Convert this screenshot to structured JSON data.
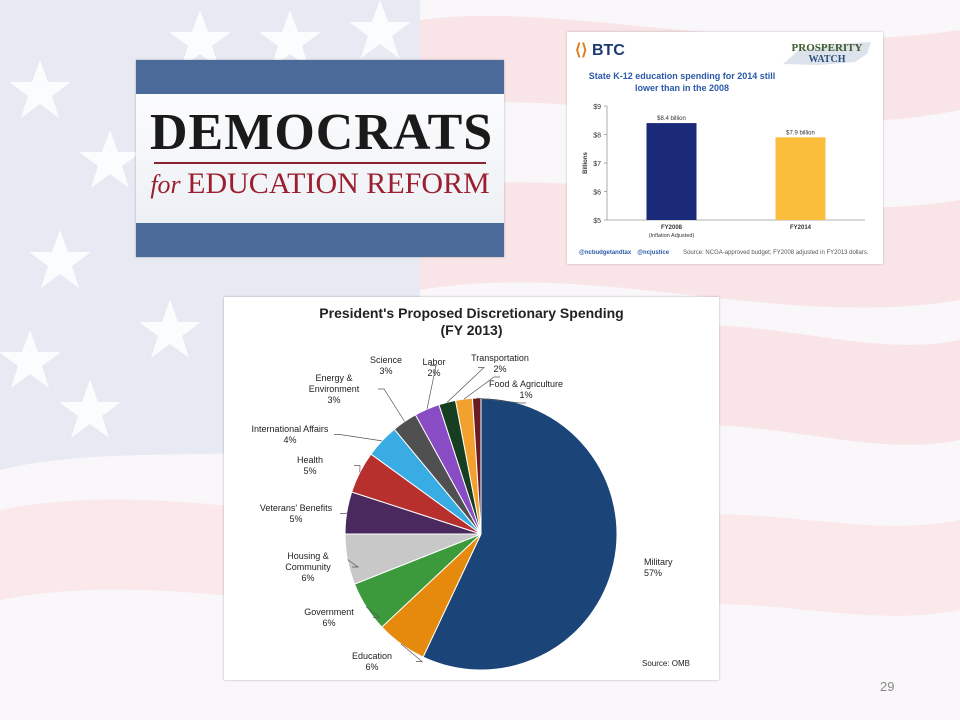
{
  "slide": {
    "number": "29"
  },
  "dfer_logo": {
    "line1": "DEMOCRATS",
    "line2_prefix": "for ",
    "line2_main": "EDUCATION REFORM"
  },
  "btc_logo": {
    "mark": "⟨⟩",
    "text": "BTC"
  },
  "prosperity_logo": {
    "line1": "PROSPERITY",
    "line2": "WATCH"
  },
  "btc_chart": {
    "title": "State K-12 education spending for 2014 still lower than in the 2008",
    "footer_handles": [
      "@ncbudgetandtax",
      "@ncjustice"
    ],
    "footer_source": "Source: NCGA-approved budget; FY2008 adjusted in FY2013 dollars."
  },
  "pie_chart": {
    "title_line1": "President's Proposed Discretionary Spending",
    "title_line2": "(FY 2013)",
    "source": "Source: OMB"
  },
  "chart_data": [
    {
      "type": "bar",
      "title": "State K-12 education spending for 2014 still lower than in the 2008",
      "ylabel": "Billions",
      "ylim": [
        5,
        9
      ],
      "yticks": [
        "$9",
        "$8",
        "$7",
        "$6",
        "$5"
      ],
      "categories": [
        "FY2008",
        "FY2014"
      ],
      "category_sublabels": [
        "(Inflation Adjusted)",
        ""
      ],
      "values": [
        8.4,
        7.9
      ],
      "data_labels": [
        "$8.4 billion",
        "$7.9 billion"
      ],
      "colors": [
        "#1b2a78",
        "#fbbd3c"
      ],
      "grid": false
    },
    {
      "type": "pie",
      "title": "President's Proposed Discretionary Spending (FY 2013)",
      "slices": [
        {
          "name": "Military",
          "value": 57,
          "label": "57%",
          "color": "#1b4478"
        },
        {
          "name": "Education",
          "value": 6,
          "label": "6%",
          "color": "#e58a0c"
        },
        {
          "name": "Government",
          "value": 6,
          "label": "6%",
          "color": "#3c9a3c"
        },
        {
          "name": "Housing & Community",
          "value": 6,
          "label": "6%",
          "color": "#c8c8c8"
        },
        {
          "name": "Veterans' Benefits",
          "value": 5,
          "label": "5%",
          "color": "#4a2a5e"
        },
        {
          "name": "Health",
          "value": 5,
          "label": "5%",
          "color": "#b8302e"
        },
        {
          "name": "International Affairs",
          "value": 4,
          "label": "4%",
          "color": "#3aace4"
        },
        {
          "name": "Energy & Environment",
          "value": 3,
          "label": "3%",
          "color": "#505050"
        },
        {
          "name": "Science",
          "value": 3,
          "label": "3%",
          "color": "#8a4cc4"
        },
        {
          "name": "Labor",
          "value": 2,
          "label": "2%",
          "color": "#163f22"
        },
        {
          "name": "Transportation",
          "value": 2,
          "label": "2%",
          "color": "#f2a12e"
        },
        {
          "name": "Food & Agriculture",
          "value": 1,
          "label": "1%",
          "color": "#6b1a22"
        }
      ],
      "labels": [
        [
          "Military",
          "57%"
        ],
        [
          "Education",
          "6%"
        ],
        [
          "Government",
          "6%"
        ],
        [
          "Housing &",
          "Community",
          "6%"
        ],
        [
          "Veterans' Benefits",
          "5%"
        ],
        [
          "Health",
          "5%"
        ],
        [
          "International Affairs",
          "4%"
        ],
        [
          "Energy &",
          "Environment",
          "3%"
        ],
        [
          "Science",
          "3%"
        ],
        [
          "Labor",
          "2%"
        ],
        [
          "Transportation",
          "2%"
        ],
        [
          "Food & Agriculture",
          "1%"
        ]
      ]
    }
  ]
}
